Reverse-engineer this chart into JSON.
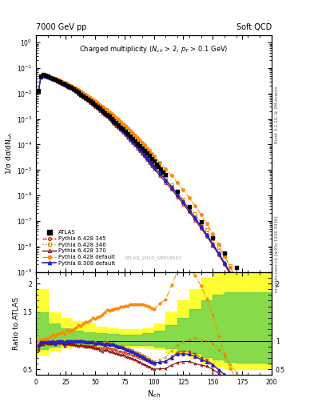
{
  "title_top": "7000 GeV pp",
  "title_top_right": "Soft QCD",
  "main_title": "Charged multiplicity ($N_{ch}$ > 2, $p_T$ > 0.1 GeV)",
  "ylabel_main": "1/σ dσ/dN$_{ch}$",
  "ylabel_ratio": "Ratio to ATLAS",
  "xlabel": "N$_{ch}$",
  "watermark": "ATLAS_2010_S8918562",
  "right_label_top": "Rivet 3.1.10, ≥ 2M events",
  "right_label_bottom": "mcplots.cern.ch [arXiv:1306.3436]",
  "xlim": [
    0,
    200
  ],
  "ylim_main": [
    1e-09,
    2.0
  ],
  "ylim_ratio": [
    0.4,
    2.2
  ],
  "atlas_x": [
    2,
    4,
    6,
    8,
    10,
    12,
    14,
    16,
    18,
    20,
    22,
    24,
    26,
    28,
    30,
    32,
    34,
    36,
    38,
    40,
    42,
    44,
    46,
    48,
    50,
    52,
    54,
    56,
    58,
    60,
    62,
    64,
    66,
    68,
    70,
    72,
    74,
    76,
    78,
    80,
    82,
    84,
    86,
    88,
    90,
    92,
    94,
    96,
    98,
    100,
    102,
    104,
    106,
    108,
    110,
    120,
    130,
    140,
    150,
    160,
    170,
    180,
    190
  ],
  "atlas_y": [
    0.013,
    0.047,
    0.054,
    0.051,
    0.047,
    0.043,
    0.039,
    0.036,
    0.032,
    0.029,
    0.026,
    0.024,
    0.021,
    0.019,
    0.017,
    0.015,
    0.013,
    0.011,
    0.0095,
    0.0082,
    0.007,
    0.006,
    0.0051,
    0.0043,
    0.0037,
    0.0031,
    0.0026,
    0.0022,
    0.0018,
    0.0015,
    0.00126,
    0.00105,
    0.00087,
    0.00072,
    0.0006,
    0.00049,
    0.0004,
    0.00033,
    0.000267,
    0.000216,
    0.000175,
    0.000141,
    0.000114,
    9.1e-05,
    7.3e-05,
    5.8e-05,
    4.6e-05,
    3.65e-05,
    2.87e-05,
    2.25e-05,
    1.76e-05,
    1.37e-05,
    1.07e-05,
    8.3e-06,
    6.4e-06,
    1.45e-06,
    3.6e-07,
    9.2e-08,
    2.2e-08,
    5.6e-09,
    1.5e-09,
    4.1e-10,
    1.1e-10
  ],
  "p6_345_x": [
    2,
    4,
    6,
    8,
    10,
    12,
    14,
    16,
    18,
    20,
    22,
    24,
    26,
    28,
    30,
    32,
    34,
    36,
    38,
    40,
    42,
    44,
    46,
    48,
    50,
    52,
    54,
    56,
    58,
    60,
    62,
    64,
    66,
    68,
    70,
    72,
    74,
    76,
    78,
    80,
    82,
    84,
    86,
    88,
    90,
    92,
    94,
    96,
    98,
    100,
    105,
    110,
    115,
    120,
    125,
    130,
    135,
    140,
    145,
    150,
    155,
    160,
    165,
    170,
    175,
    180
  ],
  "p6_345_y": [
    0.011,
    0.044,
    0.051,
    0.049,
    0.045,
    0.041,
    0.038,
    0.034,
    0.031,
    0.028,
    0.025,
    0.022,
    0.02,
    0.018,
    0.016,
    0.014,
    0.012,
    0.01,
    0.0088,
    0.0075,
    0.0064,
    0.0055,
    0.0046,
    0.0039,
    0.0033,
    0.0027,
    0.0023,
    0.0019,
    0.0016,
    0.00132,
    0.00109,
    0.0009,
    0.00074,
    0.0006,
    0.00049,
    0.0004,
    0.00032,
    0.000259,
    0.000207,
    0.000165,
    0.000131,
    0.000104,
    8.2e-05,
    6.4e-05,
    5e-05,
    3.9e-05,
    3e-05,
    2.3e-05,
    1.75e-05,
    1.33e-05,
    7.5e-06,
    4.1e-06,
    2.2e-06,
    1.15e-06,
    5.9e-07,
    2.9e-07,
    1.4e-07,
    6.5e-08,
    3e-08,
    1.3e-08,
    5.5e-09,
    2.2e-09,
    8.5e-10,
    3.2e-10,
    1.1e-10,
    3.8e-11
  ],
  "p6_346_x": [
    2,
    4,
    6,
    8,
    10,
    12,
    14,
    16,
    18,
    20,
    22,
    24,
    26,
    28,
    30,
    32,
    34,
    36,
    38,
    40,
    42,
    44,
    46,
    48,
    50,
    52,
    54,
    56,
    58,
    60,
    62,
    64,
    66,
    68,
    70,
    72,
    74,
    76,
    78,
    80,
    82,
    84,
    86,
    88,
    90,
    92,
    94,
    96,
    98,
    100,
    105,
    110,
    115,
    120,
    125,
    130,
    135,
    140,
    145,
    150,
    155,
    160,
    165,
    170,
    175,
    180
  ],
  "p6_346_y": [
    0.012,
    0.046,
    0.053,
    0.051,
    0.047,
    0.043,
    0.039,
    0.036,
    0.032,
    0.029,
    0.026,
    0.024,
    0.021,
    0.019,
    0.017,
    0.015,
    0.013,
    0.011,
    0.0096,
    0.0082,
    0.007,
    0.0059,
    0.005,
    0.0043,
    0.0036,
    0.003,
    0.0025,
    0.0021,
    0.0018,
    0.00148,
    0.00122,
    0.001,
    0.00082,
    0.00067,
    0.00055,
    0.00044,
    0.00036,
    0.000288,
    0.000231,
    0.000184,
    0.000146,
    0.000115,
    9.1e-05,
    7.1e-05,
    5.5e-05,
    4.3e-05,
    3.3e-05,
    2.5e-05,
    1.9e-05,
    1.44e-05,
    8.2e-06,
    4.6e-06,
    2.5e-06,
    1.34e-06,
    7.1e-07,
    3.7e-07,
    1.9e-07,
    9.3e-08,
    4.5e-08,
    2.1e-08,
    9.4e-09,
    4.1e-09,
    1.7e-09,
    6.8e-10,
    2.6e-10,
    9.5e-11
  ],
  "p6_370_x": [
    2,
    4,
    6,
    8,
    10,
    12,
    14,
    16,
    18,
    20,
    22,
    24,
    26,
    28,
    30,
    32,
    34,
    36,
    38,
    40,
    42,
    44,
    46,
    48,
    50,
    52,
    54,
    56,
    58,
    60,
    62,
    64,
    66,
    68,
    70,
    72,
    74,
    76,
    78,
    80,
    82,
    84,
    86,
    88,
    90,
    92,
    94,
    96,
    98,
    100,
    105,
    110,
    115,
    120,
    125,
    130,
    135,
    140,
    145,
    150,
    155,
    160,
    165,
    170,
    175,
    180
  ],
  "p6_370_y": [
    0.011,
    0.044,
    0.051,
    0.049,
    0.045,
    0.041,
    0.037,
    0.034,
    0.031,
    0.028,
    0.025,
    0.022,
    0.02,
    0.018,
    0.016,
    0.014,
    0.012,
    0.01,
    0.0088,
    0.0075,
    0.0063,
    0.0054,
    0.0046,
    0.0038,
    0.0032,
    0.0027,
    0.0022,
    0.0018,
    0.0015,
    0.00126,
    0.00103,
    0.00085,
    0.00069,
    0.00056,
    0.00046,
    0.00037,
    0.0003,
    0.00024,
    0.000191,
    0.000152,
    0.00012,
    9.4e-05,
    7.4e-05,
    5.7e-05,
    4.4e-05,
    3.4e-05,
    2.6e-05,
    2e-05,
    1.5e-05,
    1.13e-05,
    6.2e-06,
    3.3e-06,
    1.75e-06,
    9e-07,
    4.6e-07,
    2.3e-07,
    1.1e-07,
    5.3e-08,
    2.5e-08,
    1.1e-08,
    4.8e-09,
    2e-09,
    8e-10,
    3.1e-10,
    1.1e-10,
    3.8e-11
  ],
  "p6_def_x": [
    2,
    4,
    6,
    8,
    10,
    12,
    14,
    16,
    18,
    20,
    22,
    24,
    26,
    28,
    30,
    32,
    34,
    36,
    38,
    40,
    42,
    44,
    46,
    48,
    50,
    52,
    54,
    56,
    58,
    60,
    62,
    64,
    66,
    68,
    70,
    72,
    74,
    76,
    78,
    80,
    82,
    84,
    86,
    88,
    90,
    92,
    94,
    96,
    98,
    100,
    105,
    110,
    115,
    120,
    125,
    130,
    135,
    140,
    145,
    150,
    155,
    160,
    165,
    170,
    175,
    180
  ],
  "p6_def_y": [
    0.013,
    0.048,
    0.055,
    0.053,
    0.049,
    0.046,
    0.043,
    0.039,
    0.036,
    0.033,
    0.03,
    0.027,
    0.025,
    0.022,
    0.02,
    0.018,
    0.016,
    0.014,
    0.012,
    0.0107,
    0.0093,
    0.008,
    0.0069,
    0.006,
    0.0051,
    0.0044,
    0.0037,
    0.0032,
    0.0027,
    0.0023,
    0.00193,
    0.00162,
    0.00135,
    0.00113,
    0.00094,
    0.00078,
    0.00064,
    0.00053,
    0.00043,
    0.000353,
    0.000287,
    0.000231,
    0.000186,
    0.000149,
    0.000119,
    9.4e-05,
    7.4e-05,
    5.8e-05,
    4.5e-05,
    3.5e-05,
    2e-05,
    1.1e-05,
    6e-06,
    3.2e-06,
    1.65e-06,
    8.2e-07,
    3.9e-07,
    1.8e-07,
    7.8e-08,
    3.2e-08,
    1.2e-08,
    4.3e-09,
    1.5e-09,
    5e-10,
    1.5e-10,
    4e-11
  ],
  "p8_def_x": [
    2,
    4,
    6,
    8,
    10,
    12,
    14,
    16,
    18,
    20,
    22,
    24,
    26,
    28,
    30,
    32,
    34,
    36,
    38,
    40,
    42,
    44,
    46,
    48,
    50,
    52,
    54,
    56,
    58,
    60,
    62,
    64,
    66,
    68,
    70,
    72,
    74,
    76,
    78,
    80,
    82,
    84,
    86,
    88,
    90,
    92,
    94,
    96,
    98,
    100,
    105,
    110,
    115,
    120,
    125,
    130,
    135,
    140,
    145,
    150,
    155,
    160,
    165,
    170,
    175,
    180
  ],
  "p8_def_y": [
    0.012,
    0.046,
    0.053,
    0.05,
    0.046,
    0.042,
    0.039,
    0.035,
    0.032,
    0.029,
    0.026,
    0.023,
    0.021,
    0.019,
    0.017,
    0.015,
    0.013,
    0.011,
    0.0095,
    0.0081,
    0.0069,
    0.0059,
    0.005,
    0.0042,
    0.0035,
    0.003,
    0.0025,
    0.0021,
    0.0017,
    0.00143,
    0.00119,
    0.00098,
    0.00081,
    0.00066,
    0.00054,
    0.00044,
    0.00035,
    0.000281,
    0.000225,
    0.000178,
    0.000141,
    0.000111,
    8.7e-05,
    6.8e-05,
    5.3e-05,
    4.1e-05,
    3.1e-05,
    2.4e-05,
    1.82e-05,
    1.38e-05,
    7.6e-06,
    4.1e-06,
    2.15e-06,
    1.11e-06,
    5.6e-07,
    2.75e-07,
    1.32e-07,
    6.2e-08,
    2.85e-08,
    1.27e-08,
    5.5e-09,
    2.3e-09,
    9.3e-10,
    3.6e-10,
    1.35e-10,
    4.8e-11
  ],
  "band_yellow_x": [
    0,
    10,
    20,
    30,
    40,
    50,
    60,
    70,
    80,
    90,
    100,
    110,
    120,
    130,
    140,
    150,
    160,
    170,
    180,
    190,
    200
  ],
  "band_yellow_lo": [
    0.5,
    0.75,
    0.82,
    0.88,
    0.9,
    0.9,
    0.9,
    0.9,
    0.9,
    0.9,
    0.88,
    0.85,
    0.8,
    0.75,
    0.68,
    0.6,
    0.55,
    0.5,
    0.5,
    0.5,
    0.5
  ],
  "band_yellow_hi": [
    2.2,
    1.9,
    1.5,
    1.4,
    1.35,
    1.3,
    1.25,
    1.22,
    1.2,
    1.2,
    1.22,
    1.3,
    1.5,
    1.7,
    1.9,
    2.1,
    2.2,
    2.2,
    2.2,
    2.2,
    2.2
  ],
  "band_green_x": [
    0,
    10,
    20,
    30,
    40,
    50,
    60,
    70,
    80,
    90,
    100,
    110,
    120,
    130,
    140,
    150,
    160,
    170,
    180,
    190,
    200
  ],
  "band_green_lo": [
    0.7,
    0.85,
    0.9,
    0.92,
    0.93,
    0.93,
    0.93,
    0.93,
    0.93,
    0.93,
    0.92,
    0.9,
    0.87,
    0.83,
    0.78,
    0.72,
    0.67,
    0.63,
    0.62,
    0.62,
    0.62
  ],
  "band_green_hi": [
    1.7,
    1.5,
    1.3,
    1.22,
    1.18,
    1.15,
    1.13,
    1.12,
    1.11,
    1.11,
    1.13,
    1.18,
    1.28,
    1.4,
    1.55,
    1.7,
    1.8,
    1.85,
    1.85,
    1.85,
    1.85
  ]
}
